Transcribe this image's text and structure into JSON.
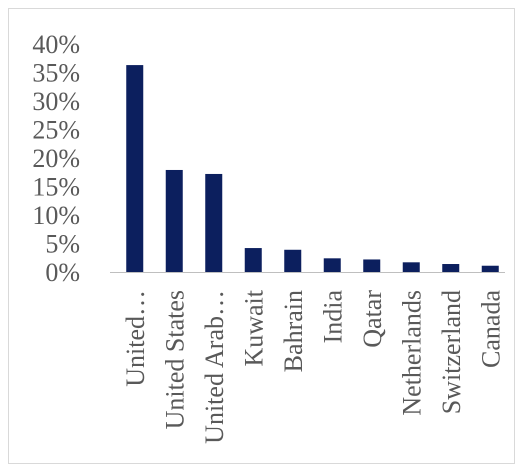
{
  "chart_data": {
    "type": "bar",
    "categories": [
      "United…",
      "United States",
      "United Arab…",
      "Kuwait",
      "Bahrain",
      "India",
      "Qatar",
      "Netherlands",
      "Switzerland",
      "Canada"
    ],
    "values": [
      36.3,
      17.9,
      17.2,
      4.2,
      3.9,
      2.4,
      2.2,
      1.7,
      1.4,
      1.1
    ],
    "ylim": [
      0,
      40
    ],
    "yticks": [
      "0%",
      "5%",
      "10%",
      "15%",
      "20%",
      "25%",
      "30%",
      "35%",
      "40%"
    ],
    "grid": false,
    "colors": {
      "bar": "#0c1f5e",
      "axis": "#bfbfbf",
      "text": "#595959"
    }
  }
}
